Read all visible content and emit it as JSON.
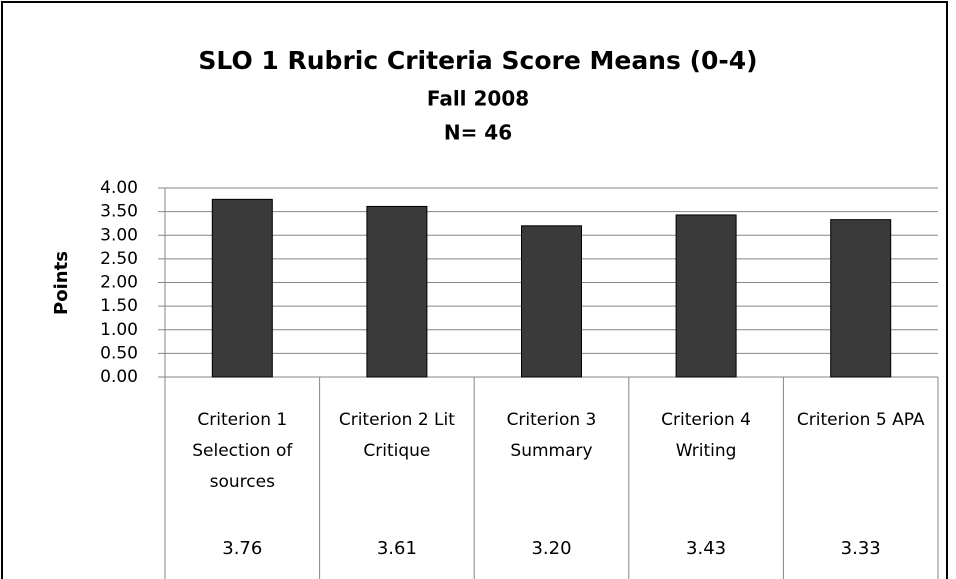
{
  "chart_data": {
    "type": "bar",
    "title": "SLO 1 Rubric Criteria Score Means (0-4)",
    "subtitle": "Fall 2008",
    "note": "N= 46",
    "y_label": "Points",
    "categories": [
      "Criterion 1 Selection of sources",
      "Criterion 2 Lit Critique",
      "Criterion 3 Summary",
      "Criterion 4 Writing",
      "Criterion 5 APA"
    ],
    "values": [
      3.76,
      3.61,
      3.2,
      3.43,
      3.33
    ],
    "value_labels": [
      "3.76",
      "3.61",
      "3.20",
      "3.43",
      "3.33"
    ],
    "color": "#3a3a3a",
    "ylim": [
      0,
      4
    ],
    "yticks": [
      {
        "value": 0,
        "label": "0.00"
      },
      {
        "value": 0.5,
        "label": "0.50"
      },
      {
        "value": 1,
        "label": "1.00"
      },
      {
        "value": 1.5,
        "label": "1.50"
      },
      {
        "value": 2,
        "label": "2.00"
      },
      {
        "value": 2.5,
        "label": "2.50"
      },
      {
        "value": 3,
        "label": "3.00"
      },
      {
        "value": 3.5,
        "label": "3.50"
      },
      {
        "value": 4,
        "label": "4.00"
      }
    ],
    "grid": true
  }
}
